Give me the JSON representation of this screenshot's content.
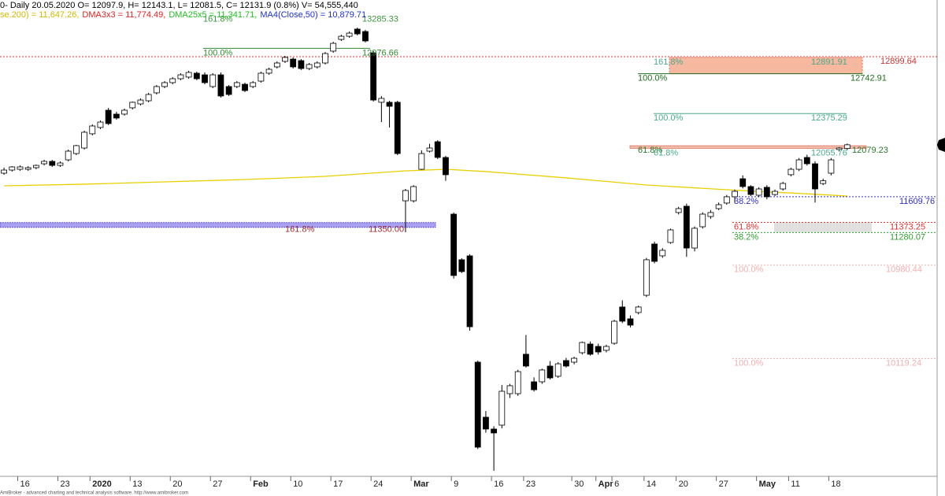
{
  "chart_data": {
    "type": "candlestick",
    "title": "0- Daily 20.05.2020 O= 12097.9, H= 12143.1, L= 12081.5, C= 12131.9 (0.8%) V= 54,555,440",
    "legend_items": [
      {
        "text": "se.200) = 11,647.26,",
        "color": "#d4b800"
      },
      {
        "text": "DMA3x3 = 11,774.49,",
        "color": "#e02020"
      },
      {
        "text": "DMA25x5 = 11,341.71,",
        "color": "#20c020"
      },
      {
        "text": "MA4(Close,50) = 10,879.71",
        "color": "#2030d0"
      }
    ],
    "footer": "AmiBroker - advanced charting and technical analysis software. http://www.amibroker.com",
    "up_color": "#ffffff",
    "down_color": "#000000",
    "open": [
      11870,
      11899,
      11906,
      11906,
      11921,
      11957,
      11979,
      11942,
      11993,
      12051,
      12102,
      12233,
      12291,
      12450,
      12414,
      12414,
      12472,
      12508,
      12537,
      12610,
      12668,
      12704,
      12740,
      12755,
      12791,
      12776,
      12668,
      12776,
      12668,
      12668,
      12689,
      12668,
      12718,
      12791,
      12849,
      12900,
      12921,
      12907,
      12834,
      12849,
      12885,
      12994,
      13102,
      13131,
      13197,
      13175,
      12979,
      12523,
      12523,
      12523,
      11616,
      11616,
      11906,
      12073,
      12160,
      12015,
      11493,
      11073,
      11109,
      10130,
      9623,
      9514,
      9550,
      9840,
      9840,
      10203,
      9949,
      9949,
      10094,
      10000,
      10145,
      10130,
      10217,
      10297,
      10275,
      10239,
      10304,
      10638,
      10529,
      10587,
      10746,
      11218,
      11109,
      11232,
      11508,
      11566,
      11181,
      11377,
      11471,
      11544,
      11595,
      11653,
      11819,
      11747,
      11667,
      11740,
      11674,
      11725,
      11856,
      11906,
      12015,
      11957,
      11775,
      11870,
      12088,
      12097.9
    ],
    "high": [
      11921,
      11935,
      11942,
      11935,
      11950,
      11993,
      11993,
      11979,
      12088,
      12131,
      12262,
      12320,
      12356,
      12472,
      12436,
      12465,
      12530,
      12559,
      12610,
      12682,
      12718,
      12755,
      12791,
      12813,
      12805,
      12798,
      12791,
      12798,
      12682,
      12718,
      12704,
      12718,
      12805,
      12842,
      12900,
      12950,
      12936,
      12921,
      12885,
      12900,
      12986,
      13080,
      13146,
      13175,
      13211,
      13190,
      12994,
      12580,
      12537,
      12537,
      11725,
      11760,
      12080,
      12140,
      12174,
      12030,
      11508,
      11087,
      11124,
      10145,
      9680,
      9540,
      9920,
      9930,
      10060,
      10380,
      9990,
      10070,
      10140,
      10130,
      10170,
      10180,
      10320,
      10320,
      10300,
      10290,
      10520,
      10700,
      10560,
      10650,
      11090,
      11240,
      11180,
      11360,
      11560,
      11590,
      11380,
      11510,
      11530,
      11600,
      11670,
      11720,
      11850,
      11760,
      11740,
      11760,
      11720,
      11790,
      11920,
      12010,
      12040,
      11980,
      11820,
      12010,
      12110,
      12143.1
    ],
    "low": [
      11856,
      11885,
      11892,
      11892,
      11906,
      11942,
      11928,
      11928,
      11979,
      12037,
      12088,
      12218,
      12276,
      12313,
      12363,
      12400,
      12457,
      12494,
      12523,
      12595,
      12653,
      12689,
      12726,
      12740,
      12726,
      12689,
      12653,
      12566,
      12581,
      12653,
      12617,
      12653,
      12704,
      12776,
      12834,
      12885,
      12834,
      12820,
      12820,
      12834,
      12871,
      12979,
      13088,
      13117,
      13139,
      13074,
      12530,
      12341,
      12291,
      12037,
      11326,
      11600,
      11900,
      12060,
      12000,
      11800,
      10900,
      10950,
      10420,
      9330,
      9480,
      9130,
      9520,
      9800,
      9820,
      10080,
      9860,
      9930,
      9970,
      9985,
      10080,
      10110,
      10200,
      10190,
      10200,
      10220,
      10290,
      10490,
      10450,
      10570,
      10730,
      11040,
      11090,
      11220,
      11490,
      11100,
      11150,
      11360,
      11450,
      11530,
      11580,
      11600,
      11730,
      11660,
      11650,
      11630,
      11660,
      11710,
      11840,
      11890,
      11940,
      11600,
      11760,
      11850,
      12070,
      12081.5
    ],
    "close": [
      11899,
      11928,
      11928,
      11921,
      11942,
      11979,
      11942,
      11964,
      12073,
      12124,
      12247,
      12305,
      12341,
      12327,
      12378,
      12450,
      12523,
      12544,
      12595,
      12668,
      12704,
      12740,
      12776,
      12798,
      12740,
      12704,
      12776,
      12581,
      12595,
      12704,
      12631,
      12704,
      12791,
      12827,
      12885,
      12936,
      12849,
      12834,
      12871,
      12885,
      12972,
      13066,
      13131,
      13160,
      13153,
      13088,
      12544,
      12559,
      12486,
      12051,
      11711,
      11747,
      12051,
      12102,
      12015,
      11856,
      10928,
      10964,
      10456,
      9347,
      9514,
      9478,
      9862,
      9913,
      10043,
      10094,
      9876,
      10058,
      9985,
      10115,
      10094,
      10166,
      10311,
      10203,
      10224,
      10275,
      10507,
      10507,
      10471,
      10638,
      11073,
      11058,
      11160,
      11348,
      11544,
      11181,
      11363,
      11493,
      11508,
      11580,
      11653,
      11703,
      11747,
      11674,
      11725,
      11653,
      11703,
      11776,
      11906,
      11993,
      11957,
      11725,
      11800,
      11993,
      12102,
      12131.9
    ],
    "ma": {
      "color": "#e8d000",
      "x": [
        0,
        10,
        20,
        30,
        40,
        50,
        55,
        60,
        70,
        80,
        90,
        100,
        105
      ],
      "values": [
        11754,
        11769,
        11790,
        11812,
        11841,
        11892,
        11906,
        11885,
        11827,
        11761,
        11718,
        11680,
        11660
      ]
    },
    "levels": [
      {
        "pct": "161.8%",
        "value": 13285.33,
        "color": "#3a9a3a"
      },
      {
        "pct": "100.0%",
        "value": 12976.66,
        "color": "#2e8b2e"
      },
      {
        "value": 12899.64,
        "color": "#d03030"
      },
      {
        "pct": "161.8%",
        "value": 12891.91,
        "color": "#4aa88a"
      },
      {
        "pct": "100.0%",
        "value": 12742.91,
        "color": "#1f6f1f"
      },
      {
        "pct": "100.0%",
        "value": 12375.29,
        "color": "#4aa88a"
      },
      {
        "pct": "61.8%",
        "value": 12079.23,
        "color": "#2a7a2a"
      },
      {
        "pct": "61.8%",
        "value": 12055.76,
        "color": "#4aa88a"
      },
      {
        "pct": "38.2%",
        "value": 11609.76,
        "color": "#3030c0"
      },
      {
        "pct": "161.8%",
        "value": 11350,
        "label": "11350.00",
        "color": "#a03030"
      },
      {
        "pct": "61.8%",
        "value": 11373.25,
        "color": "#e03030"
      },
      {
        "pct": "38.2%",
        "value": 11280.07,
        "color": "#30a030"
      },
      {
        "pct": "100.0%",
        "value": 10980.44,
        "color": "#f0b0b0"
      },
      {
        "pct": "100.0%",
        "value": 10119.24,
        "color": "#f0b0b0"
      }
    ],
    "xlim": [
      -0.5,
      116.2
    ],
    "ylim": [
      9078.75,
      13465
    ],
    "xticks": [
      {
        "value": 2,
        "label": "16"
      },
      {
        "value": 7,
        "label": "23"
      },
      {
        "value": 11,
        "label": "2020"
      },
      {
        "value": 16,
        "label": "13"
      },
      {
        "value": 21,
        "label": "20"
      },
      {
        "value": 26,
        "label": "27"
      },
      {
        "value": 31,
        "label": "Feb"
      },
      {
        "value": 36,
        "label": "10"
      },
      {
        "value": 41,
        "label": "17"
      },
      {
        "value": 46,
        "label": "24"
      },
      {
        "value": 51,
        "label": "Mar"
      },
      {
        "value": 56,
        "label": "9"
      },
      {
        "value": 61,
        "label": "16"
      },
      {
        "value": 65,
        "label": "23"
      },
      {
        "value": 71,
        "label": "30"
      },
      {
        "value": 74,
        "label": "Apr"
      },
      {
        "value": 76,
        "label": "6"
      },
      {
        "value": 80,
        "label": "14"
      },
      {
        "value": 84,
        "label": "20"
      },
      {
        "value": 89,
        "label": "27"
      },
      {
        "value": 94,
        "label": "May"
      },
      {
        "value": 98,
        "label": "11"
      },
      {
        "value": 103,
        "label": "18"
      }
    ]
  }
}
